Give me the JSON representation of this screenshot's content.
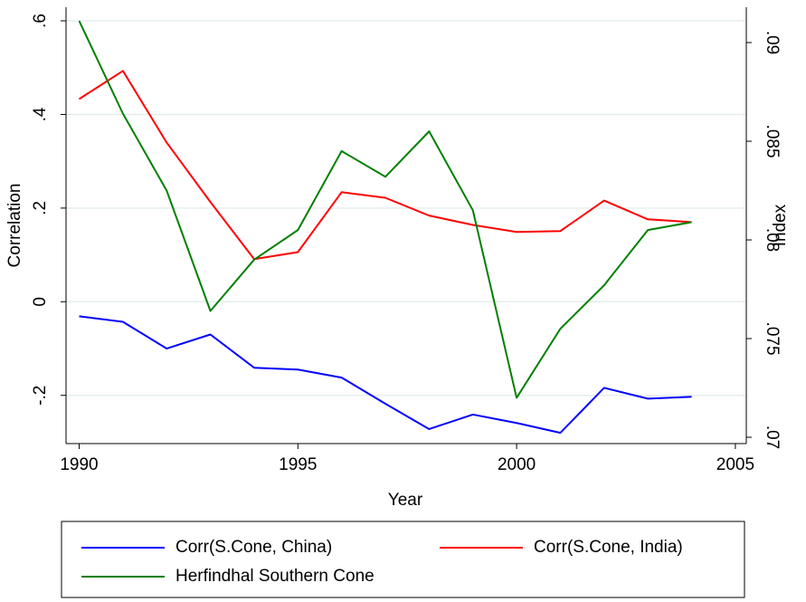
{
  "chart_data": {
    "type": "line",
    "xlabel": "Year",
    "ylabel": "Correlation",
    "y2label": "Index",
    "x": [
      1990,
      1991,
      1992,
      1993,
      1994,
      1995,
      1996,
      1997,
      1998,
      1999,
      2000,
      2001,
      2002,
      2003,
      2004
    ],
    "xlim": [
      1989.7,
      2005.25
    ],
    "xticks": [
      1990,
      1995,
      2000,
      2005
    ],
    "ylim": [
      -0.303,
      0.629
    ],
    "yticks": [
      {
        "value": -0.2,
        "label": "-.2"
      },
      0,
      {
        "value": 0.2,
        "label": ".2"
      },
      {
        "value": 0.4,
        "label": ".4"
      },
      {
        "value": 0.6,
        "label": ".6"
      }
    ],
    "y2lim": [
      0.06968,
      0.09179
    ],
    "y2ticks": [
      {
        "value": 0.07,
        "label": ".07"
      },
      {
        "value": 0.075,
        "label": ".075"
      },
      {
        "value": 0.08,
        "label": ".08"
      },
      {
        "value": 0.085,
        "label": ".085"
      },
      {
        "value": 0.09,
        "label": ".09"
      }
    ],
    "grid": true,
    "legend_position": "bottom",
    "series": [
      {
        "name": "Corr(S.Cone, China)",
        "color": "#0000ff",
        "values": [
          -0.031,
          -0.043,
          -0.1,
          -0.07,
          -0.141,
          -0.145,
          -0.162,
          -0.218,
          -0.272,
          -0.241,
          -0.259,
          -0.28,
          -0.184,
          -0.207,
          -0.203
        ]
      },
      {
        "name": "Corr(S.Cone, India)",
        "color": "#ff0000",
        "values": [
          0.433,
          0.493,
          0.34,
          0.213,
          0.091,
          0.106,
          0.234,
          0.222,
          0.184,
          0.164,
          0.149,
          0.151,
          0.216,
          0.176,
          0.17
        ]
      },
      {
        "name": "Herfindhal Southern Cone",
        "color": "#008000",
        "axis": "y2",
        "values": [
          0.0911,
          0.0864,
          0.0825,
          0.0764,
          0.079,
          0.0805,
          0.0845,
          0.0832,
          0.0855,
          0.0815,
          0.072,
          0.0755,
          0.0777,
          0.0805,
          0.0809
        ]
      }
    ]
  }
}
